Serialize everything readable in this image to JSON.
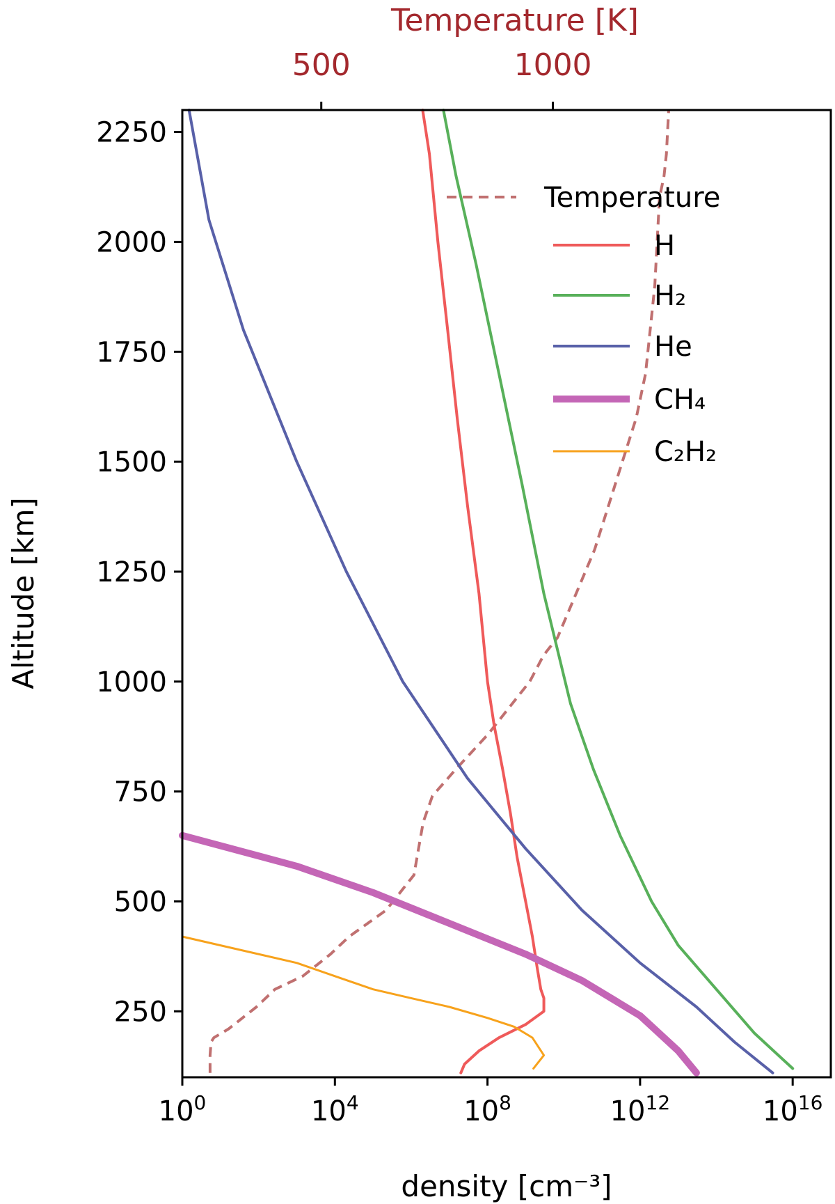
{
  "chart_data": {
    "type": "line",
    "xlabel": "density [cm⁻³]",
    "ylabel": "Altitude [km]",
    "x_scale": "log",
    "xlim": [
      1,
      1e+17
    ],
    "x_ticks": [
      {
        "value": 1,
        "base": "10",
        "exp": "0"
      },
      {
        "value": 10000,
        "base": "10",
        "exp": "4"
      },
      {
        "value": 100000000,
        "base": "10",
        "exp": "8"
      },
      {
        "value": 1000000000000,
        "base": "10",
        "exp": "12"
      },
      {
        "value": 10000000000000000,
        "base": "10",
        "exp": "16"
      }
    ],
    "ylim": [
      100,
      2300
    ],
    "y_ticks": [
      "250",
      "500",
      "750",
      "1000",
      "1250",
      "1500",
      "1750",
      "2000",
      "2250"
    ],
    "top_axis": {
      "label": "Temperature [K]",
      "color": "#a3282d",
      "xlim": [
        200,
        1600
      ],
      "ticks": [
        "500",
        "1000"
      ]
    },
    "legend_position": "top-right",
    "series": [
      {
        "name": "Temperature",
        "axis": "top",
        "color": "#c07070",
        "style": "dashed",
        "width": 4,
        "points": [
          [
            260,
            110
          ],
          [
            260,
            150
          ],
          [
            262,
            180
          ],
          [
            268,
            190
          ],
          [
            300,
            210
          ],
          [
            360,
            260
          ],
          [
            400,
            300
          ],
          [
            460,
            330
          ],
          [
            520,
            380
          ],
          [
            560,
            420
          ],
          [
            640,
            480
          ],
          [
            700,
            560
          ],
          [
            710,
            620
          ],
          [
            720,
            680
          ],
          [
            740,
            740
          ],
          [
            790,
            800
          ],
          [
            860,
            880
          ],
          [
            920,
            960
          ],
          [
            950,
            1000
          ],
          [
            980,
            1060
          ],
          [
            1010,
            1100
          ],
          [
            1050,
            1200
          ],
          [
            1090,
            1300
          ],
          [
            1120,
            1400
          ],
          [
            1150,
            1500
          ],
          [
            1180,
            1600
          ],
          [
            1200,
            1700
          ],
          [
            1210,
            1800
          ],
          [
            1220,
            1900
          ],
          [
            1225,
            2000
          ],
          [
            1230,
            2100
          ],
          [
            1240,
            2150
          ],
          [
            1245,
            2200
          ],
          [
            1250,
            2300
          ]
        ]
      },
      {
        "name": "H",
        "color": "#ef5a5a",
        "style": "solid",
        "width": 4,
        "points": [
          [
            20000000.0,
            110
          ],
          [
            25000000.0,
            130
          ],
          [
            60000000.0,
            160
          ],
          [
            200000000.0,
            190
          ],
          [
            1000000000.0,
            220
          ],
          [
            3000000000.0,
            250
          ],
          [
            3000000000.0,
            280
          ],
          [
            2500000000.0,
            300
          ],
          [
            2000000000.0,
            350
          ],
          [
            1500000000.0,
            420
          ],
          [
            1000000000.0,
            500
          ],
          [
            600000000.0,
            600
          ],
          [
            400000000.0,
            700
          ],
          [
            250000000.0,
            800
          ],
          [
            150000000.0,
            900
          ],
          [
            100000000.0,
            1000
          ],
          [
            60000000.0,
            1200
          ],
          [
            30000000.0,
            1400
          ],
          [
            16000000.0,
            1600
          ],
          [
            9000000.0,
            1800
          ],
          [
            5000000.0,
            2000
          ],
          [
            3000000.0,
            2200
          ],
          [
            2000000.0,
            2300
          ]
        ]
      },
      {
        "name": "H₂",
        "color": "#58b05a",
        "style": "solid",
        "width": 4,
        "points": [
          [
            1e+16,
            120
          ],
          [
            1000000000000000.0,
            200
          ],
          [
            100000000000000.0,
            300
          ],
          [
            10000000000000.0,
            400
          ],
          [
            2000000000000.0,
            500
          ],
          [
            300000000000.0,
            650
          ],
          [
            60000000000.0,
            800
          ],
          [
            15000000000.0,
            950
          ],
          [
            3000000000.0,
            1200
          ],
          [
            800000000.0,
            1450
          ],
          [
            200000000.0,
            1700
          ],
          [
            50000000.0,
            1950
          ],
          [
            15000000.0,
            2150
          ],
          [
            7000000.0,
            2300
          ]
        ]
      },
      {
        "name": "He",
        "color": "#5860a8",
        "style": "solid",
        "width": 4,
        "points": [
          [
            3000000000000000.0,
            110
          ],
          [
            300000000000000.0,
            180
          ],
          [
            30000000000000.0,
            260
          ],
          [
            1000000000000.0,
            360
          ],
          [
            30000000000.0,
            480
          ],
          [
            1000000000.0,
            620
          ],
          [
            30000000.0,
            780
          ],
          [
            600000.0,
            1000
          ],
          [
            20000.0,
            1250
          ],
          [
            1000.0,
            1500
          ],
          [
            40,
            1800
          ],
          [
            5,
            2050
          ],
          [
            1.5,
            2300
          ]
        ]
      },
      {
        "name": "CH₄",
        "color": "#c466b6",
        "style": "solid",
        "width": 10,
        "points": [
          [
            30000000000000.0,
            110
          ],
          [
            10000000000000.0,
            160
          ],
          [
            1000000000000.0,
            240
          ],
          [
            30000000000.0,
            320
          ],
          [
            1000000000.0,
            380
          ],
          [
            10000000.0,
            450
          ],
          [
            100000.0,
            520
          ],
          [
            1000.0,
            580
          ],
          [
            1,
            650
          ]
        ]
      },
      {
        "name": "C₂H₂",
        "color": "#f7a21c",
        "style": "solid",
        "width": 3,
        "points": [
          [
            1600000000.0,
            120
          ],
          [
            3000000000.0,
            150
          ],
          [
            1500000000.0,
            190
          ],
          [
            500000000.0,
            215
          ],
          [
            100000000.0,
            235
          ],
          [
            10000000.0,
            260
          ],
          [
            1000000.0,
            280
          ],
          [
            100000.0,
            300
          ],
          [
            10000.0,
            330
          ],
          [
            1000.0,
            360
          ],
          [
            1,
            420
          ]
        ]
      }
    ]
  }
}
